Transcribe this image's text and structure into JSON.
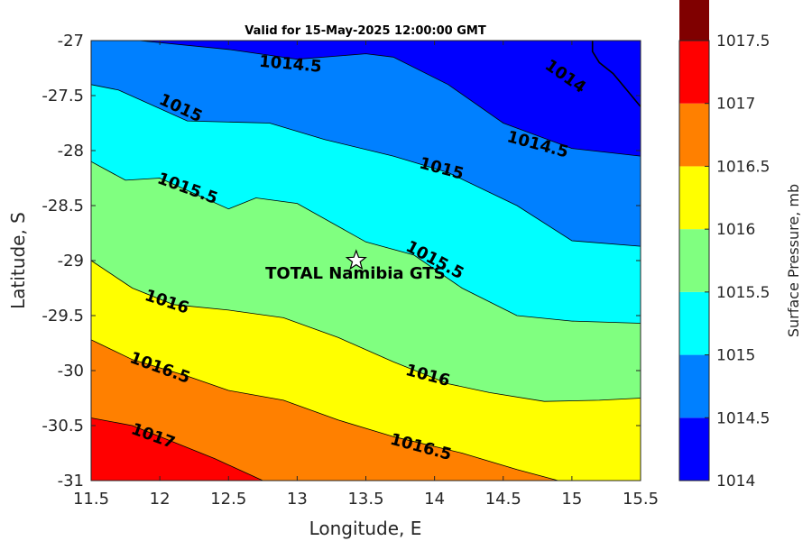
{
  "chart_data": {
    "type": "contour",
    "title": "Valid for 15-May-2025 12:00:00 GMT",
    "xlabel": "Longitude, E",
    "ylabel": "Latitude, S",
    "xlim": [
      11.5,
      15.5
    ],
    "ylim": [
      -31,
      -27
    ],
    "x_ticks": [
      "11.5",
      "12",
      "12.5",
      "13",
      "13.5",
      "14",
      "14.5",
      "15",
      "15.5"
    ],
    "y_ticks": [
      "-27",
      "-27.5",
      "-28",
      "-28.5",
      "-29",
      "-29.5",
      "-30",
      "-30.5",
      "-31"
    ],
    "colorbar": {
      "label": "Surface Pressure, mb",
      "ticks": [
        "1017.5",
        "1017",
        "1016.5",
        "1016",
        "1015.5",
        "1015",
        "1014.5",
        "1014"
      ],
      "levels": [
        1014,
        1014.5,
        1015,
        1015.5,
        1016,
        1016.5,
        1017,
        1017.5
      ],
      "colors": [
        "#0000ff",
        "#0080ff",
        "#00ffff",
        "#80ff80",
        "#ffff00",
        "#ff8000",
        "#ff0000",
        "#800000"
      ]
    },
    "contours": [
      {
        "level": 1014.5,
        "points": [
          [
            11.85,
            -27
          ],
          [
            12.5,
            -27.08
          ],
          [
            13.0,
            -27.17
          ],
          [
            13.5,
            -27.12
          ],
          [
            13.7,
            -27.15
          ],
          [
            14.1,
            -27.4
          ],
          [
            14.5,
            -27.75
          ],
          [
            15.0,
            -27.98
          ],
          [
            15.5,
            -28.05
          ]
        ]
      },
      {
        "level": 1015,
        "points": [
          [
            11.5,
            -27.4
          ],
          [
            11.7,
            -27.45
          ],
          [
            12.2,
            -27.73
          ],
          [
            12.8,
            -27.75
          ],
          [
            13.2,
            -27.9
          ],
          [
            13.7,
            -28.05
          ],
          [
            14.1,
            -28.2
          ],
          [
            14.6,
            -28.5
          ],
          [
            15.0,
            -28.82
          ],
          [
            15.5,
            -28.87
          ]
        ]
      },
      {
        "level": 1015.5,
        "points": [
          [
            11.5,
            -28.1
          ],
          [
            11.75,
            -28.27
          ],
          [
            12.0,
            -28.25
          ],
          [
            12.5,
            -28.53
          ],
          [
            12.7,
            -28.43
          ],
          [
            13.0,
            -28.48
          ],
          [
            13.5,
            -28.83
          ],
          [
            13.85,
            -28.95
          ],
          [
            14.2,
            -29.25
          ],
          [
            14.6,
            -29.5
          ],
          [
            15.0,
            -29.55
          ],
          [
            15.5,
            -29.57
          ]
        ]
      },
      {
        "level": 1016,
        "points": [
          [
            11.5,
            -29.0
          ],
          [
            11.8,
            -29.25
          ],
          [
            12.1,
            -29.4
          ],
          [
            12.5,
            -29.45
          ],
          [
            12.9,
            -29.52
          ],
          [
            13.3,
            -29.7
          ],
          [
            13.7,
            -29.92
          ],
          [
            14.1,
            -30.12
          ],
          [
            14.4,
            -30.2
          ],
          [
            14.8,
            -30.28
          ],
          [
            15.2,
            -30.27
          ],
          [
            15.5,
            -30.25
          ]
        ]
      },
      {
        "level": 1016.5,
        "points": [
          [
            11.5,
            -29.72
          ],
          [
            11.8,
            -29.9
          ],
          [
            12.2,
            -30.05
          ],
          [
            12.5,
            -30.18
          ],
          [
            12.9,
            -30.27
          ],
          [
            13.3,
            -30.45
          ],
          [
            13.7,
            -30.6
          ],
          [
            14.2,
            -30.75
          ],
          [
            14.6,
            -30.9
          ],
          [
            14.9,
            -31.0
          ]
        ]
      },
      {
        "level": 1017,
        "points": [
          [
            11.5,
            -30.43
          ],
          [
            11.8,
            -30.5
          ],
          [
            12.1,
            -30.65
          ],
          [
            12.4,
            -30.8
          ],
          [
            12.75,
            -31.0
          ]
        ]
      }
    ],
    "contour_labels": [
      {
        "text": "1014.5",
        "lon": 12.95,
        "lat": -27.22,
        "angle": 5
      },
      {
        "text": "1014",
        "lon": 14.95,
        "lat": -27.33,
        "angle": 35
      },
      {
        "text": "1015",
        "lon": 12.15,
        "lat": -27.62,
        "angle": 25
      },
      {
        "text": "1014.5",
        "lon": 14.75,
        "lat": -27.95,
        "angle": 15
      },
      {
        "text": "1015",
        "lon": 14.05,
        "lat": -28.17,
        "angle": 15
      },
      {
        "text": "1015.5",
        "lon": 12.2,
        "lat": -28.35,
        "angle": 20
      },
      {
        "text": "1015.5",
        "lon": 14.0,
        "lat": -29.0,
        "angle": 28
      },
      {
        "text": "1016",
        "lon": 12.05,
        "lat": -29.38,
        "angle": 18
      },
      {
        "text": "1016.5",
        "lon": 12.0,
        "lat": -29.98,
        "angle": 20
      },
      {
        "text": "1016",
        "lon": 13.95,
        "lat": -30.05,
        "angle": 15
      },
      {
        "text": "1016.5",
        "lon": 13.9,
        "lat": -30.7,
        "angle": 15
      },
      {
        "text": "1017",
        "lon": 11.95,
        "lat": -30.6,
        "angle": 20
      }
    ],
    "site": {
      "label": "TOTAL Namibia GTS",
      "lon": 13.43,
      "lat": -29.0
    },
    "coastline": [
      [
        15.15,
        -27
      ],
      [
        15.15,
        -27.1
      ],
      [
        15.2,
        -27.2
      ],
      [
        15.3,
        -27.3
      ],
      [
        15.4,
        -27.45
      ],
      [
        15.5,
        -27.6
      ]
    ]
  }
}
